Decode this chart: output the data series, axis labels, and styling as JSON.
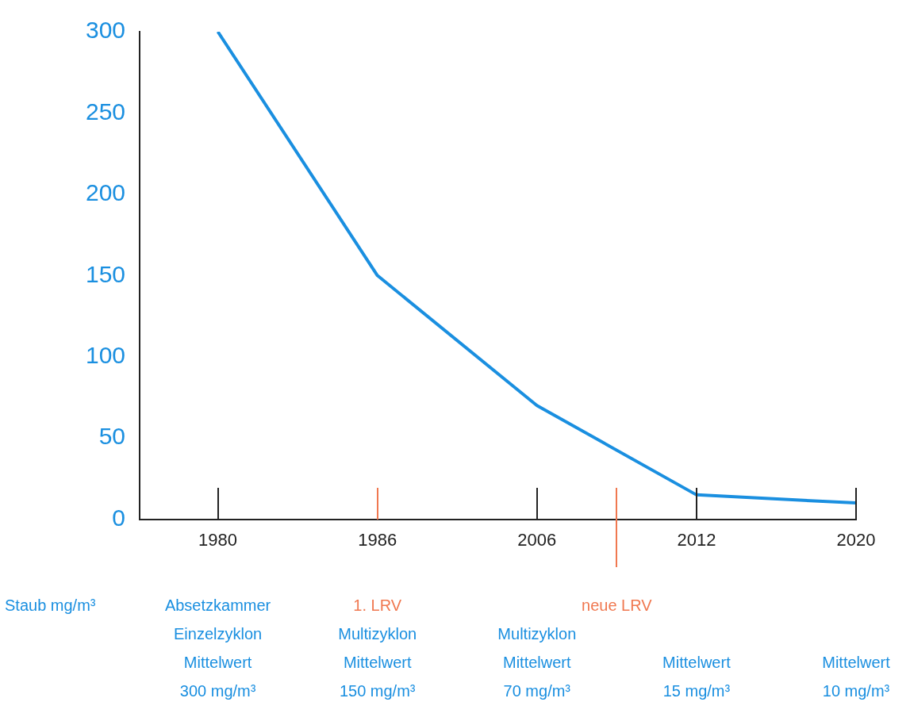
{
  "chart_data": {
    "type": "line",
    "categories": [
      "1980",
      "1986",
      "2006",
      "2012",
      "2020"
    ],
    "series": [
      {
        "color": "#1a8fe0",
        "values": [
          300,
          150,
          70,
          15,
          10
        ]
      }
    ],
    "ylim": [
      0,
      300
    ],
    "yticks": [
      0,
      50,
      100,
      150,
      200,
      250,
      300
    ],
    "ylabel": "Staub mg/m³",
    "grid": false,
    "legend": false,
    "marker": "none",
    "line_style": "solid",
    "annotations": [
      "Absetzkammer\nEinzelzyklon\nMittelwert\n300 mg/m³",
      "Multizyklon\nMittelwert\n150 mg/m³",
      "Multizyklon\nMittelwert\n70 mg/m³",
      "Mittelwert\n15 mg/m³",
      "Mittelwert\n10 mg/m³",
      "1. LRV",
      "neue LRV"
    ]
  }
}
